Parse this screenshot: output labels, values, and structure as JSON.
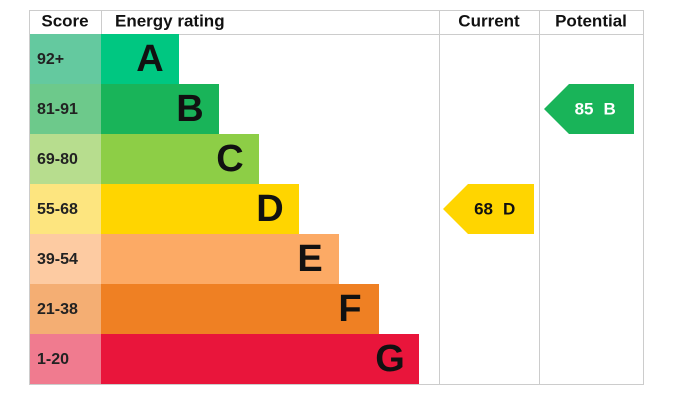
{
  "header": {
    "score": "Score",
    "rating": "Energy rating",
    "current": "Current",
    "potential": "Potential"
  },
  "bands": [
    {
      "score": "92+",
      "letter": "A",
      "color": "#00c781",
      "score_color": "#64c99f"
    },
    {
      "score": "81-91",
      "letter": "B",
      "color": "#19b459",
      "score_color": "#6dc98b"
    },
    {
      "score": "69-80",
      "letter": "C",
      "color": "#8dce46",
      "score_color": "#b7dd8e"
    },
    {
      "score": "55-68",
      "letter": "D",
      "color": "#ffd500",
      "score_color": "#fde57f"
    },
    {
      "score": "39-54",
      "letter": "E",
      "color": "#fcaa65",
      "score_color": "#fdcba2"
    },
    {
      "score": "21-38",
      "letter": "F",
      "color": "#ef8023",
      "score_color": "#f4ae73"
    },
    {
      "score": "1-20",
      "letter": "G",
      "color": "#e9153b",
      "score_color": "#f07b8f"
    }
  ],
  "current": {
    "score": 68,
    "letter": "D"
  },
  "potential": {
    "score": 85,
    "letter": "B"
  }
}
